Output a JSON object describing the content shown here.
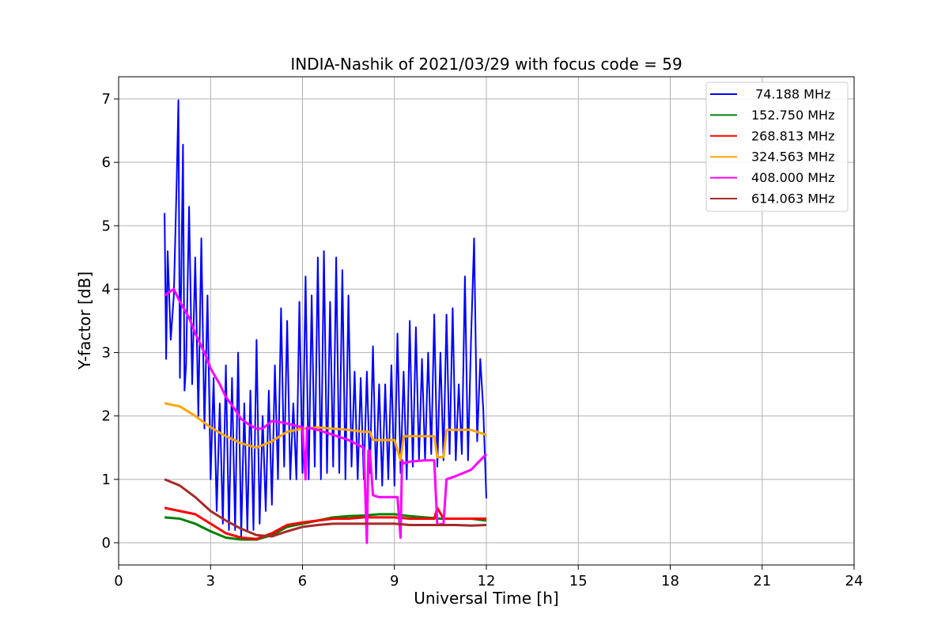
{
  "chart_data": {
    "type": "line",
    "title": "INDIA-Nashik of 2021/03/29 with focus code = 59",
    "xlabel": "Universal Time [h]",
    "ylabel": "Y-factor [dB]",
    "xlim": [
      0,
      24
    ],
    "ylim": [
      -0.35,
      7.35
    ],
    "xticks": [
      0,
      3,
      6,
      9,
      12,
      15,
      18,
      21,
      24
    ],
    "yticks": [
      0,
      1,
      2,
      3,
      4,
      5,
      6,
      7
    ],
    "xtick_labels": [
      "0",
      "3",
      "6",
      "9",
      "12",
      "15",
      "18",
      "21",
      "24"
    ],
    "ytick_labels": [
      "0",
      "1",
      "2",
      "3",
      "4",
      "5",
      "6",
      "7"
    ],
    "grid": true,
    "legend_position": "top-right",
    "series": [
      {
        "name": " 74.188 MHz",
        "color": "#0000ff",
        "x": [
          1.5,
          1.55,
          1.6,
          1.7,
          1.8,
          1.9,
          1.95,
          2.0,
          2.1,
          2.15,
          2.2,
          2.3,
          2.4,
          2.5,
          2.6,
          2.7,
          2.8,
          2.9,
          3.0,
          3.1,
          3.2,
          3.3,
          3.4,
          3.5,
          3.6,
          3.7,
          3.8,
          3.9,
          4.0,
          4.1,
          4.2,
          4.3,
          4.4,
          4.5,
          4.6,
          4.7,
          4.8,
          4.9,
          5.0,
          5.1,
          5.2,
          5.3,
          5.4,
          5.5,
          5.6,
          5.7,
          5.8,
          5.9,
          6.0,
          6.1,
          6.2,
          6.3,
          6.4,
          6.5,
          6.6,
          6.7,
          6.8,
          6.9,
          7.0,
          7.1,
          7.2,
          7.3,
          7.4,
          7.5,
          7.6,
          7.7,
          7.8,
          7.9,
          8.0,
          8.1,
          8.2,
          8.3,
          8.4,
          8.5,
          8.6,
          8.7,
          8.8,
          8.9,
          9.0,
          9.1,
          9.2,
          9.3,
          9.4,
          9.5,
          9.6,
          9.7,
          9.8,
          9.9,
          10.0,
          10.1,
          10.2,
          10.3,
          10.4,
          10.5,
          10.6,
          10.7,
          10.8,
          10.9,
          11.0,
          11.1,
          11.2,
          11.3,
          11.4,
          11.5,
          11.6,
          11.7,
          11.8,
          11.9,
          12.0
        ],
        "y": [
          5.2,
          2.9,
          4.6,
          3.2,
          3.9,
          5.8,
          6.98,
          2.6,
          6.28,
          2.4,
          2.8,
          5.3,
          2.5,
          4.5,
          2.0,
          4.8,
          1.8,
          3.9,
          1.0,
          2.6,
          0.5,
          2.2,
          0.3,
          2.8,
          0.2,
          2.6,
          0.2,
          3.0,
          0.1,
          2.2,
          0.2,
          2.4,
          0.2,
          3.2,
          0.3,
          2.0,
          0.5,
          2.4,
          0.6,
          2.8,
          1.0,
          3.7,
          1.2,
          3.5,
          1.0,
          2.2,
          1.0,
          3.8,
          1.1,
          4.2,
          1.0,
          3.9,
          1.2,
          4.5,
          1.0,
          4.6,
          1.1,
          3.8,
          1.2,
          4.5,
          1.1,
          4.3,
          1.0,
          3.9,
          1.2,
          2.7,
          1.0,
          2.6,
          1.0,
          2.7,
          1.1,
          3.1,
          1.0,
          2.5,
          0.9,
          2.5,
          1.0,
          2.8,
          0.9,
          3.3,
          1.1,
          2.7,
          1.0,
          3.5,
          1.2,
          3.4,
          1.3,
          2.9,
          1.3,
          3.0,
          1.4,
          3.6,
          1.2,
          3.0,
          1.3,
          3.6,
          1.4,
          3.7,
          1.3,
          2.5,
          1.4,
          4.2,
          1.3,
          3.2,
          4.8,
          1.6,
          2.9,
          2.1,
          0.7
        ]
      },
      {
        "name": "152.750 MHz",
        "color": "#008000",
        "x": [
          1.5,
          2.0,
          2.5,
          3.0,
          3.5,
          4.0,
          4.5,
          5.0,
          5.5,
          6.0,
          6.5,
          7.0,
          7.5,
          8.0,
          8.5,
          9.0,
          9.5,
          10.0,
          10.5,
          11.0,
          11.5,
          12.0
        ],
        "y": [
          0.4,
          0.38,
          0.3,
          0.18,
          0.08,
          0.05,
          0.05,
          0.12,
          0.25,
          0.3,
          0.35,
          0.4,
          0.42,
          0.43,
          0.45,
          0.45,
          0.42,
          0.4,
          0.38,
          0.38,
          0.38,
          0.35
        ]
      },
      {
        "name": "268.813 MHz",
        "color": "#ff0000",
        "x": [
          1.5,
          2.0,
          2.5,
          3.0,
          3.5,
          4.0,
          4.5,
          5.0,
          5.5,
          6.0,
          6.5,
          7.0,
          7.5,
          8.0,
          8.5,
          9.0,
          9.5,
          10.0,
          10.3,
          10.4,
          10.6,
          11.0,
          11.5,
          12.0
        ],
        "y": [
          0.55,
          0.5,
          0.45,
          0.3,
          0.15,
          0.08,
          0.06,
          0.15,
          0.28,
          0.32,
          0.35,
          0.38,
          0.38,
          0.4,
          0.4,
          0.4,
          0.38,
          0.38,
          0.38,
          0.55,
          0.38,
          0.38,
          0.38,
          0.38
        ]
      },
      {
        "name": "324.563 MHz",
        "color": "#ffa500",
        "x": [
          1.5,
          2.0,
          2.5,
          3.0,
          3.5,
          4.0,
          4.5,
          5.0,
          5.5,
          6.0,
          6.5,
          7.0,
          7.5,
          8.0,
          8.2,
          8.3,
          9.0,
          9.2,
          9.3,
          10.0,
          10.3,
          10.4,
          10.6,
          10.7,
          11.0,
          11.5,
          12.0
        ],
        "y": [
          2.2,
          2.15,
          2.0,
          1.82,
          1.68,
          1.57,
          1.5,
          1.6,
          1.75,
          1.8,
          1.82,
          1.8,
          1.78,
          1.75,
          1.75,
          1.62,
          1.62,
          1.3,
          1.68,
          1.68,
          1.68,
          1.35,
          1.35,
          1.78,
          1.78,
          1.78,
          1.7
        ]
      },
      {
        "name": "408.000 MHz",
        "color": "#ff00ff",
        "x": [
          1.5,
          1.8,
          2.0,
          2.3,
          2.5,
          2.8,
          3.0,
          3.3,
          3.5,
          3.8,
          4.0,
          4.3,
          4.5,
          4.7,
          5.0,
          5.3,
          5.5,
          6.0,
          6.1,
          6.15,
          6.5,
          7.0,
          7.5,
          8.0,
          8.1,
          8.15,
          8.2,
          8.3,
          8.5,
          9.0,
          9.1,
          9.2,
          9.25,
          9.3,
          9.5,
          10.0,
          10.3,
          10.4,
          10.6,
          10.7,
          11.0,
          11.5,
          12.0
        ],
        "y": [
          3.9,
          4.0,
          3.8,
          3.55,
          3.3,
          3.0,
          2.75,
          2.5,
          2.3,
          2.1,
          1.95,
          1.85,
          1.8,
          1.8,
          1.92,
          1.9,
          1.88,
          1.82,
          1.0,
          1.82,
          1.78,
          1.7,
          1.62,
          1.5,
          0.0,
          1.45,
          1.45,
          0.75,
          0.72,
          0.72,
          0.72,
          0.08,
          1.3,
          1.25,
          1.28,
          1.3,
          1.3,
          0.28,
          0.3,
          1.0,
          1.05,
          1.15,
          1.4
        ]
      },
      {
        "name": "614.063 MHz",
        "color": "#a52a2a",
        "x": [
          1.5,
          2.0,
          2.5,
          3.0,
          3.5,
          4.0,
          4.5,
          5.0,
          5.5,
          6.0,
          6.5,
          7.0,
          7.5,
          8.0,
          8.5,
          9.0,
          9.5,
          10.0,
          10.5,
          11.0,
          11.5,
          12.0
        ],
        "y": [
          1.0,
          0.9,
          0.72,
          0.5,
          0.35,
          0.22,
          0.12,
          0.1,
          0.18,
          0.25,
          0.28,
          0.3,
          0.3,
          0.3,
          0.3,
          0.3,
          0.28,
          0.28,
          0.28,
          0.28,
          0.27,
          0.28
        ]
      }
    ]
  }
}
